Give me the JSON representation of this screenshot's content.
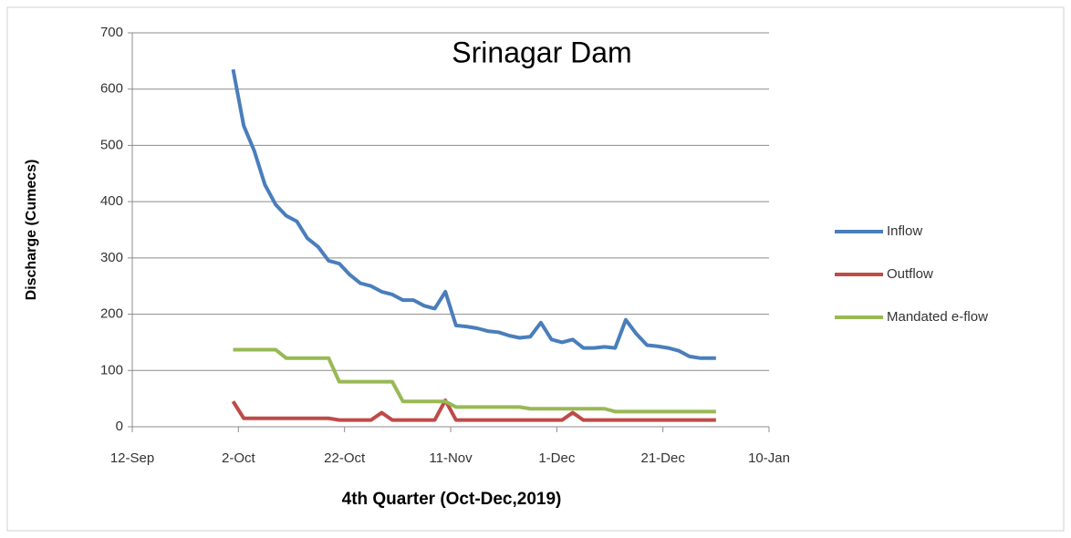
{
  "chart_data": {
    "type": "line",
    "title": "Srinagar Dam",
    "x_label": "4th Quarter (Oct-Dec,2019)",
    "y_label": "Discharge (Cumecs)",
    "x": [
      19,
      21,
      23,
      25,
      27,
      29,
      31,
      33,
      35,
      37,
      39,
      41,
      43,
      45,
      47,
      49,
      51,
      53,
      55,
      57,
      59,
      61,
      63,
      65,
      67,
      69,
      71,
      73,
      75,
      77,
      79,
      81,
      83,
      85,
      87,
      89,
      91,
      93,
      95,
      97,
      99,
      101,
      103,
      105,
      107,
      109,
      110
    ],
    "series": [
      {
        "name": "Inflow",
        "color": "#4a7ebb",
        "values": [
          635,
          535,
          490,
          430,
          395,
          375,
          365,
          335,
          320,
          295,
          290,
          270,
          255,
          250,
          240,
          235,
          225,
          225,
          215,
          210,
          240,
          180,
          178,
          175,
          170,
          168,
          162,
          158,
          160,
          185,
          155,
          150,
          155,
          140,
          140,
          142,
          140,
          190,
          165,
          145,
          143,
          140,
          135,
          125,
          122,
          122,
          122
        ]
      },
      {
        "name": "Outflow",
        "color": "#be4b48",
        "values": [
          45,
          15,
          15,
          15,
          15,
          15,
          15,
          15,
          15,
          15,
          12,
          12,
          12,
          12,
          25,
          12,
          12,
          12,
          12,
          12,
          47,
          12,
          12,
          12,
          12,
          12,
          12,
          12,
          12,
          12,
          12,
          12,
          25,
          12,
          12,
          12,
          12,
          12,
          12,
          12,
          12,
          12,
          12,
          12,
          12,
          12,
          12
        ]
      },
      {
        "name": "Mandated e-flow",
        "color": "#98b954",
        "values": [
          137,
          137,
          137,
          137,
          137,
          122,
          122,
          122,
          122,
          122,
          80,
          80,
          80,
          80,
          80,
          80,
          45,
          45,
          45,
          45,
          45,
          35,
          35,
          35,
          35,
          35,
          35,
          35,
          32,
          32,
          32,
          32,
          32,
          32,
          32,
          32,
          27,
          27,
          27,
          27,
          27,
          27,
          27,
          27,
          27,
          27,
          27
        ]
      }
    ],
    "xlim": [
      0,
      120
    ],
    "xticks": [
      {
        "value": 0,
        "label": "12-Sep"
      },
      {
        "value": 20,
        "label": "2-Oct"
      },
      {
        "value": 40,
        "label": "22-Oct"
      },
      {
        "value": 60,
        "label": "11-Nov"
      },
      {
        "value": 80,
        "label": "1-Dec"
      },
      {
        "value": 100,
        "label": "21-Dec"
      },
      {
        "value": 120,
        "label": "10-Jan"
      }
    ],
    "ylim": [
      0,
      700
    ],
    "yticks": [
      0,
      100,
      200,
      300,
      400,
      500,
      600,
      700
    ],
    "grid": true,
    "legend": "right"
  }
}
